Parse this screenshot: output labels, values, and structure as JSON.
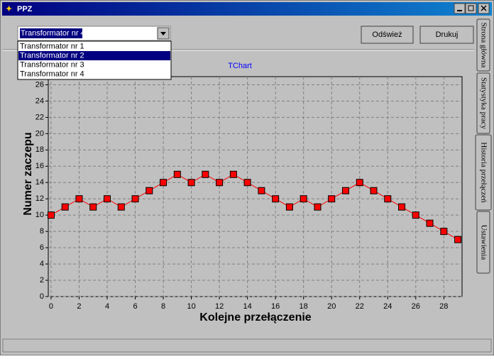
{
  "window": {
    "title": "PPZ"
  },
  "combo": {
    "value": "Transformator nr 4"
  },
  "dropdown": {
    "items": [
      "Transformator nr 1",
      "Transformator nr 2",
      "Transformator nr 3",
      "Transformator nr 4"
    ],
    "highlighted": 1
  },
  "buttons": [
    "Odśwież",
    "Drukuj"
  ],
  "tabs": {
    "items": [
      "Strona główna",
      "Statystyka pracy",
      "Historia przełączeń",
      "Ustawienia"
    ],
    "active": 2
  },
  "chart_data": {
    "type": "line",
    "title": "TChart",
    "x_label": "Kolejne przełączenie",
    "y_label": "Numer zaczepu",
    "x": [
      0,
      1,
      2,
      3,
      4,
      5,
      6,
      7,
      8,
      9,
      10,
      11,
      12,
      13,
      14,
      15,
      16,
      17,
      18,
      19,
      20,
      21,
      22,
      23,
      24,
      25,
      26,
      27,
      28,
      29
    ],
    "series": [
      {
        "color": "#ff0000",
        "values": [
          10,
          11,
          12,
          11,
          12,
          11,
          12,
          13,
          14,
          15,
          14,
          15,
          14,
          15,
          14,
          13,
          12,
          11,
          12,
          11,
          12,
          13,
          14,
          13,
          12,
          11,
          10,
          9,
          8,
          7
        ]
      }
    ],
    "xlim": [
      -0.2,
      29.3
    ],
    "ylim": [
      0,
      27
    ],
    "xticks": [
      0,
      2,
      4,
      6,
      8,
      10,
      12,
      14,
      16,
      18,
      20,
      22,
      24,
      26,
      28
    ],
    "yticks": [
      0,
      2,
      4,
      6,
      8,
      10,
      12,
      14,
      16,
      18,
      20,
      22,
      24,
      26
    ],
    "grid": true
  }
}
